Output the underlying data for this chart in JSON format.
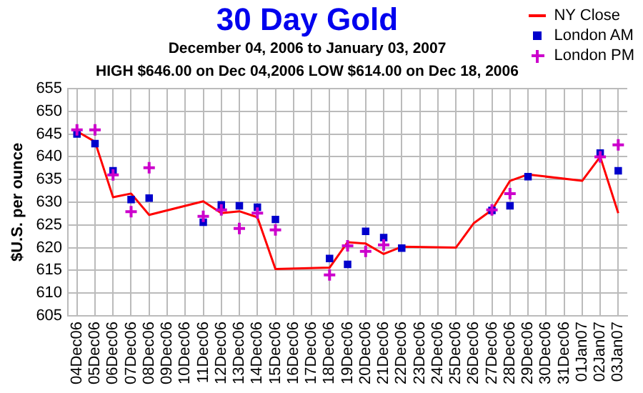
{
  "chart_data": {
    "type": "line",
    "title": "30 Day Gold",
    "subtitle": "December 04, 2006 to January 03, 2007",
    "annotations": [
      "HIGH $646.00 on Dec 04,2006 LOW $614.00 on Dec 18, 2006"
    ],
    "ylabel": "$U.S. per ounce",
    "categories": [
      "04Dec06",
      "05Dec06",
      "06Dec06",
      "07Dec06",
      "08Dec06",
      "09Dec06",
      "10Dec06",
      "11Dec06",
      "12Dec06",
      "13Dec06",
      "14Dec06",
      "15Dec06",
      "16Dec06",
      "17Dec06",
      "18Dec06",
      "19Dec06",
      "20Dec06",
      "21Dec06",
      "22Dec06",
      "23Dec06",
      "24Dec06",
      "25Dec06",
      "26Dec06",
      "27Dec06",
      "28Dec06",
      "29Dec06",
      "30Dec06",
      "31Dec06",
      "01Jan07",
      "02Jan07",
      "03Jan07"
    ],
    "series": [
      {
        "name": "NY Close",
        "color": "#ff0000",
        "marker": "none",
        "values": [
          645.6,
          643.3,
          631.1,
          631.9,
          627.2,
          null,
          null,
          630.2,
          627.6,
          628,
          626.7,
          615.3,
          null,
          null,
          615.6,
          621.2,
          620.9,
          618.6,
          620.2,
          null,
          null,
          620,
          625.4,
          628.3,
          634.7,
          636.1,
          null,
          null,
          634.7,
          640,
          627.6
        ]
      },
      {
        "type": "scatter",
        "name": "London AM",
        "color": "#0000cc",
        "marker": "square",
        "values": [
          645,
          642.9,
          636.9,
          630.6,
          630.9,
          null,
          null,
          625.6,
          629.4,
          629.2,
          628.9,
          626.2,
          null,
          null,
          617.6,
          616.3,
          623.6,
          622.2,
          619.9,
          null,
          null,
          null,
          null,
          628.2,
          629.2,
          635.6,
          null,
          null,
          null,
          640.8,
          636.9
        ]
      },
      {
        "type": "scatter",
        "name": "London PM",
        "color": "#cc00cc",
        "marker": "cross",
        "values": [
          645.9,
          645.9,
          636,
          627.9,
          637.6,
          null,
          null,
          626.9,
          628.3,
          624.2,
          627.6,
          623.9,
          null,
          null,
          614,
          620.4,
          619.2,
          620.6,
          null,
          null,
          null,
          null,
          null,
          628.3,
          631.9,
          null,
          null,
          null,
          null,
          640,
          642.6
        ]
      }
    ],
    "ylim": [
      605,
      655
    ],
    "yticks": [
      605,
      610,
      615,
      620,
      625,
      630,
      635,
      640,
      645,
      650,
      655
    ],
    "grid": true,
    "legend": "top right"
  }
}
